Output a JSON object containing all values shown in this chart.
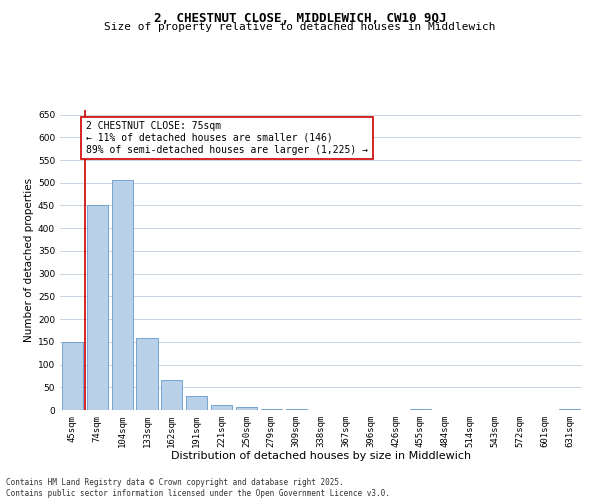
{
  "title": "2, CHESTNUT CLOSE, MIDDLEWICH, CW10 9QJ",
  "subtitle": "Size of property relative to detached houses in Middlewich",
  "xlabel": "Distribution of detached houses by size in Middlewich",
  "ylabel": "Number of detached properties",
  "categories": [
    "45sqm",
    "74sqm",
    "104sqm",
    "133sqm",
    "162sqm",
    "191sqm",
    "221sqm",
    "250sqm",
    "279sqm",
    "309sqm",
    "338sqm",
    "367sqm",
    "396sqm",
    "426sqm",
    "455sqm",
    "484sqm",
    "514sqm",
    "543sqm",
    "572sqm",
    "601sqm",
    "631sqm"
  ],
  "values": [
    150,
    450,
    507,
    158,
    67,
    31,
    12,
    6,
    3,
    2,
    0,
    0,
    0,
    0,
    2,
    0,
    0,
    0,
    0,
    0,
    2
  ],
  "bar_color": "#b8d0e8",
  "bar_edge_color": "#6699cc",
  "annotation_text": "2 CHESTNUT CLOSE: 75sqm\n← 11% of detached houses are smaller (146)\n89% of semi-detached houses are larger (1,225) →",
  "annotation_box_facecolor": "#ffffff",
  "annotation_box_edgecolor": "#cc0000",
  "property_line_color": "#cc0000",
  "property_line_x": 0.5,
  "background_color": "#ffffff",
  "grid_color": "#c8d4e0",
  "title_fontsize": 9,
  "subtitle_fontsize": 8,
  "xlabel_fontsize": 8,
  "ylabel_fontsize": 7.5,
  "tick_fontsize": 6.5,
  "annot_fontsize": 7,
  "footer_fontsize": 5.5,
  "footer_text": "Contains HM Land Registry data © Crown copyright and database right 2025.\nContains public sector information licensed under the Open Government Licence v3.0.",
  "ylim": [
    0,
    660
  ],
  "yticks": [
    0,
    50,
    100,
    150,
    200,
    250,
    300,
    350,
    400,
    450,
    500,
    550,
    600,
    650
  ]
}
